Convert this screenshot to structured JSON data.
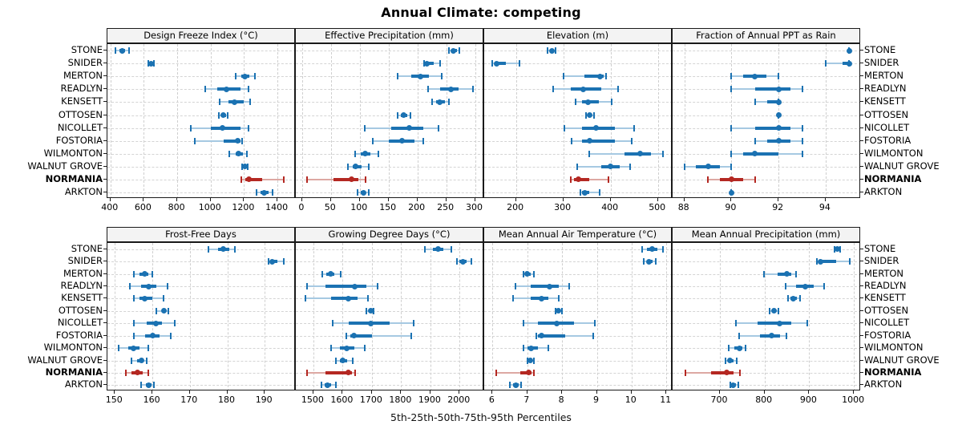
{
  "title": "Annual Climate: competing",
  "caption": "5th-25th-50th-75th-95th Percentiles",
  "highlighted_site": "NORMANIA",
  "colors": {
    "site": "#1b72b2",
    "site_light": "#a6c9e2",
    "highlight": "#b42822",
    "highlight_light": "#dda8a3",
    "strip_bg": "#f3f3f3",
    "grid": "#cfcfcf",
    "border": "#1a1a1a"
  },
  "sites": [
    "STONE",
    "SNIDER",
    "MERTON",
    "READLYN",
    "KENSETT",
    "OTTOSEN",
    "NICOLLET",
    "FOSTORIA",
    "WILMONTON",
    "WALNUT GROVE",
    "NORMANIA",
    "ARKTON"
  ],
  "chart_data": [
    {
      "type": "dot-whisker-percentiles",
      "title": "Design Freeze Index (°C)",
      "grid_row": 0,
      "grid_col": 0,
      "xlim": [
        382,
        1510
      ],
      "ticks": [
        400,
        600,
        800,
        1000,
        1200,
        1400
      ],
      "percentiles": {
        "STONE": [
          432,
          455,
          470,
          487,
          512
        ],
        "SNIDER": [
          628,
          638,
          645,
          652,
          660
        ],
        "MERTON": [
          1152,
          1185,
          1207,
          1232,
          1264
        ],
        "READLYN": [
          968,
          1040,
          1093,
          1180,
          1227
        ],
        "KENSETT": [
          1053,
          1105,
          1144,
          1200,
          1237
        ],
        "OTTOSEN": [
          1048,
          1065,
          1077,
          1092,
          1104
        ],
        "NICOLLET": [
          883,
          1000,
          1069,
          1180,
          1227
        ],
        "FOSTORIA": [
          907,
          1080,
          1160,
          1180,
          1187
        ],
        "WILMONTON": [
          1109,
          1150,
          1168,
          1195,
          1216
        ],
        "WALNUT GROVE": [
          1187,
          1198,
          1205,
          1213,
          1220
        ],
        "NORMANIA": [
          1185,
          1205,
          1227,
          1310,
          1437
        ],
        "ARKTON": [
          1276,
          1300,
          1320,
          1345,
          1371
        ]
      }
    },
    {
      "type": "dot-whisker-percentiles",
      "title": "Effective Precipitation (mm)",
      "grid_row": 0,
      "grid_col": 1,
      "xlim": [
        -11,
        316
      ],
      "ticks": [
        0,
        50,
        100,
        150,
        200,
        250,
        300
      ],
      "percentiles": {
        "STONE": [
          255,
          259,
          263,
          268,
          273
        ],
        "SNIDER": [
          211,
          213,
          216,
          228,
          239
        ],
        "MERTON": [
          166,
          190,
          205,
          220,
          242
        ],
        "READLYN": [
          219,
          240,
          258,
          272,
          296
        ],
        "KENSETT": [
          226,
          233,
          239,
          248,
          255
        ],
        "OTTOSEN": [
          166,
          171,
          176,
          182,
          188
        ],
        "NICOLLET": [
          108,
          155,
          186,
          210,
          237
        ],
        "FOSTORIA": [
          122,
          150,
          173,
          195,
          210
        ],
        "WILMONTON": [
          92,
          101,
          109,
          118,
          132
        ],
        "WALNUT GROVE": [
          80,
          88,
          93,
          103,
          116
        ],
        "NORMANIA": [
          8,
          55,
          86,
          98,
          110
        ],
        "ARKTON": [
          96,
          101,
          106,
          110,
          115
        ]
      }
    },
    {
      "type": "dot-whisker-percentiles",
      "title": "Elevation (m)",
      "grid_row": 0,
      "grid_col": 2,
      "xlim": [
        133,
        531
      ],
      "ticks": [
        200,
        300,
        400,
        500
      ],
      "percentiles": {
        "STONE": [
          267,
          272,
          276,
          280,
          284
        ],
        "SNIDER": [
          150,
          155,
          160,
          178,
          207
        ],
        "MERTON": [
          300,
          345,
          378,
          385,
          391
        ],
        "READLYN": [
          279,
          315,
          342,
          380,
          416
        ],
        "KENSETT": [
          326,
          340,
          352,
          375,
          403
        ],
        "OTTOSEN": [
          348,
          352,
          356,
          360,
          365
        ],
        "NICOLLET": [
          303,
          340,
          369,
          410,
          450
        ],
        "FOSTORIA": [
          318,
          340,
          356,
          410,
          444
        ],
        "WILMONTON": [
          354,
          430,
          463,
          485,
          510
        ],
        "WALNUT GROVE": [
          330,
          380,
          400,
          420,
          442
        ],
        "NORMANIA": [
          315,
          322,
          332,
          355,
          395
        ],
        "ARKTON": [
          336,
          340,
          345,
          355,
          377
        ]
      }
    },
    {
      "type": "dot-whisker-percentiles",
      "title": "Fraction of Annual PPT as Rain",
      "grid_row": 0,
      "grid_col": 3,
      "xlim": [
        87.5,
        95.5
      ],
      "ticks": [
        88,
        90,
        92,
        94
      ],
      "percentiles": {
        "STONE": [
          95,
          95,
          95,
          95,
          95
        ],
        "SNIDER": [
          94,
          94.7,
          95,
          95,
          95
        ],
        "MERTON": [
          90,
          90.5,
          91,
          91.5,
          92
        ],
        "READLYN": [
          90,
          91,
          92,
          92.5,
          93
        ],
        "KENSETT": [
          91,
          91.5,
          92,
          92,
          92
        ],
        "OTTOSEN": [
          92,
          92,
          92,
          92,
          92
        ],
        "NICOLLET": [
          90,
          91,
          92,
          92.5,
          93
        ],
        "FOSTORIA": [
          91,
          91.5,
          92,
          92.5,
          93
        ],
        "WILMONTON": [
          90,
          90.5,
          91,
          92,
          93
        ],
        "WALNUT GROVE": [
          88,
          88.5,
          89,
          89.5,
          90
        ],
        "NORMANIA": [
          89,
          89.5,
          90,
          90.5,
          91
        ],
        "ARKTON": [
          90,
          90,
          90,
          90,
          90
        ]
      }
    },
    {
      "type": "dot-whisker-percentiles",
      "title": "Frost-Free Days",
      "grid_row": 1,
      "grid_col": 0,
      "xlim": [
        148,
        198.3
      ],
      "ticks": [
        150,
        160,
        170,
        180,
        190
      ],
      "percentiles": {
        "STONE": [
          175,
          177.5,
          179,
          180.5,
          182
        ],
        "SNIDER": [
          191,
          191.5,
          192,
          193.5,
          195
        ],
        "MERTON": [
          155,
          156.5,
          158,
          159,
          160
        ],
        "READLYN": [
          154,
          157,
          159,
          161,
          164
        ],
        "KENSETT": [
          155,
          156.5,
          158,
          160,
          163
        ],
        "OTTOSEN": [
          161,
          162.5,
          163,
          163.7,
          164.3
        ],
        "NICOLLET": [
          155,
          158.5,
          161,
          162.5,
          166
        ],
        "FOSTORIA": [
          155,
          158,
          160,
          162,
          165
        ],
        "WILMONTON": [
          151,
          153.5,
          155,
          156.5,
          159
        ],
        "WALNUT GROVE": [
          154.5,
          156,
          157,
          157.7,
          158.5
        ],
        "NORMANIA": [
          153,
          154.5,
          156,
          157.5,
          159
        ],
        "ARKTON": [
          157,
          158.3,
          159,
          159.8,
          160.5
        ]
      }
    },
    {
      "type": "dot-whisker-percentiles",
      "title": "Growing Degree Days (°C)",
      "grid_row": 1,
      "grid_col": 1,
      "xlim": [
        1440,
        2084
      ],
      "ticks": [
        1500,
        1600,
        1700,
        1800,
        1900,
        2000
      ],
      "percentiles": {
        "STONE": [
          1882,
          1908,
          1927,
          1945,
          1971
        ],
        "SNIDER": [
          1990,
          2000,
          2010,
          2025,
          2041
        ],
        "MERTON": [
          1530,
          1545,
          1559,
          1572,
          1592
        ],
        "READLYN": [
          1478,
          1540,
          1640,
          1680,
          1720
        ],
        "KENSETT": [
          1473,
          1560,
          1619,
          1650,
          1687
        ],
        "OTTOSEN": [
          1680,
          1688,
          1696,
          1701,
          1707
        ],
        "NICOLLET": [
          1567,
          1620,
          1696,
          1760,
          1844
        ],
        "FOSTORIA": [
          1613,
          1625,
          1639,
          1700,
          1834
        ],
        "WILMONTON": [
          1561,
          1590,
          1614,
          1640,
          1675
        ],
        "WALNUT GROVE": [
          1578,
          1590,
          1600,
          1615,
          1634
        ],
        "NORMANIA": [
          1477,
          1540,
          1620,
          1633,
          1642
        ],
        "ARKTON": [
          1527,
          1538,
          1548,
          1560,
          1578
        ]
      }
    },
    {
      "type": "dot-whisker-percentiles",
      "title": "Mean Annual Air Temperature (°C)",
      "grid_row": 1,
      "grid_col": 2,
      "xlim": [
        5.76,
        11.18
      ],
      "ticks": [
        6,
        7,
        8,
        9,
        10,
        11
      ],
      "percentiles": {
        "STONE": [
          10.3,
          10.45,
          10.6,
          10.75,
          10.9
        ],
        "SNIDER": [
          10.35,
          10.45,
          10.5,
          10.6,
          10.7
        ],
        "MERTON": [
          6.9,
          6.95,
          7.0,
          7.1,
          7.2
        ],
        "READLYN": [
          6.65,
          7.1,
          7.65,
          7.9,
          8.2
        ],
        "KENSETT": [
          6.6,
          7.1,
          7.4,
          7.6,
          7.9
        ],
        "OTTOSEN": [
          7.8,
          7.85,
          7.9,
          7.95,
          8.0
        ],
        "NICOLLET": [
          6.9,
          7.3,
          7.85,
          8.35,
          8.95
        ],
        "FOSTORIA": [
          7.25,
          7.3,
          7.4,
          8.1,
          8.9
        ],
        "WILMONTON": [
          6.9,
          7.0,
          7.1,
          7.3,
          7.6
        ],
        "WALNUT GROVE": [
          7.0,
          7.03,
          7.08,
          7.13,
          7.2
        ],
        "NORMANIA": [
          6.1,
          6.8,
          7.05,
          7.12,
          7.2
        ],
        "ARKTON": [
          6.5,
          6.6,
          6.68,
          6.75,
          6.82
        ]
      }
    },
    {
      "type": "dot-whisker-percentiles",
      "title": "Mean Annual Precipitation (mm)",
      "grid_row": 1,
      "grid_col": 3,
      "xlim": [
        594,
        1016
      ],
      "ticks": [
        700,
        800,
        900,
        1000
      ],
      "percentiles": {
        "STONE": [
          956,
          960,
          963,
          966,
          970
        ],
        "SNIDER": [
          918,
          921,
          925,
          960,
          990
        ],
        "MERTON": [
          799,
          830,
          849,
          860,
          870
        ],
        "READLYN": [
          848,
          870,
          891,
          910,
          933
        ],
        "KENSETT": [
          852,
          858,
          865,
          872,
          879
        ],
        "OTTOSEN": [
          812,
          817,
          821,
          826,
          831
        ],
        "NICOLLET": [
          736,
          785,
          833,
          860,
          895
        ],
        "FOSTORIA": [
          743,
          790,
          816,
          835,
          849
        ],
        "WILMONTON": [
          719,
          732,
          743,
          750,
          757
        ],
        "WALNUT GROVE": [
          712,
          717,
          723,
          731,
          738
        ],
        "NORMANIA": [
          623,
          680,
          715,
          730,
          745
        ],
        "ARKTON": [
          723,
          727,
          730,
          736,
          742
        ]
      }
    }
  ]
}
